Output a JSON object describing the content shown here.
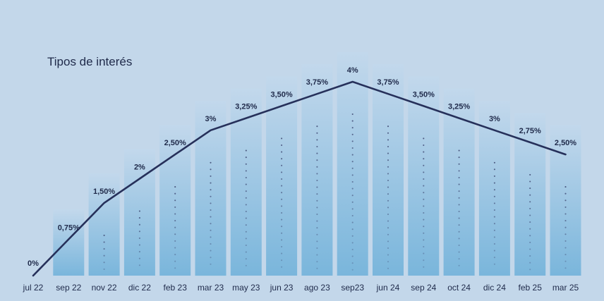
{
  "chart_data": {
    "type": "line",
    "title": "Tipos de interés",
    "categories": [
      "jul 22",
      "sep 22",
      "nov 22",
      "dic 22",
      "feb 23",
      "mar 23",
      "may 23",
      "jun 23",
      "ago 23",
      "sep23",
      "jun 24",
      "sep 24",
      "oct 24",
      "dic 24",
      "feb 25",
      "mar 25"
    ],
    "values": [
      0,
      0.75,
      1.5,
      2,
      2.5,
      3,
      3.25,
      3.5,
      3.75,
      4,
      3.75,
      3.5,
      3.25,
      3,
      2.75,
      2.5
    ],
    "value_labels": [
      "0%",
      "0,75%",
      "1,50%",
      "2%",
      "2,50%",
      "3%",
      "3,25%",
      "3,50%",
      "3,75%",
      "4%",
      "3,75%",
      "3,50%",
      "3,25%",
      "3%",
      "2,75%",
      "2,50%"
    ],
    "ylim": [
      0,
      4
    ],
    "xlabel": "",
    "ylabel": "",
    "grid": false,
    "colors": {
      "background": "#c3d7ea",
      "line": "#26305a",
      "text": "#1f2a4a",
      "bar_top": "#c2d8ec",
      "bar_bottom": "#6db0d9"
    }
  }
}
